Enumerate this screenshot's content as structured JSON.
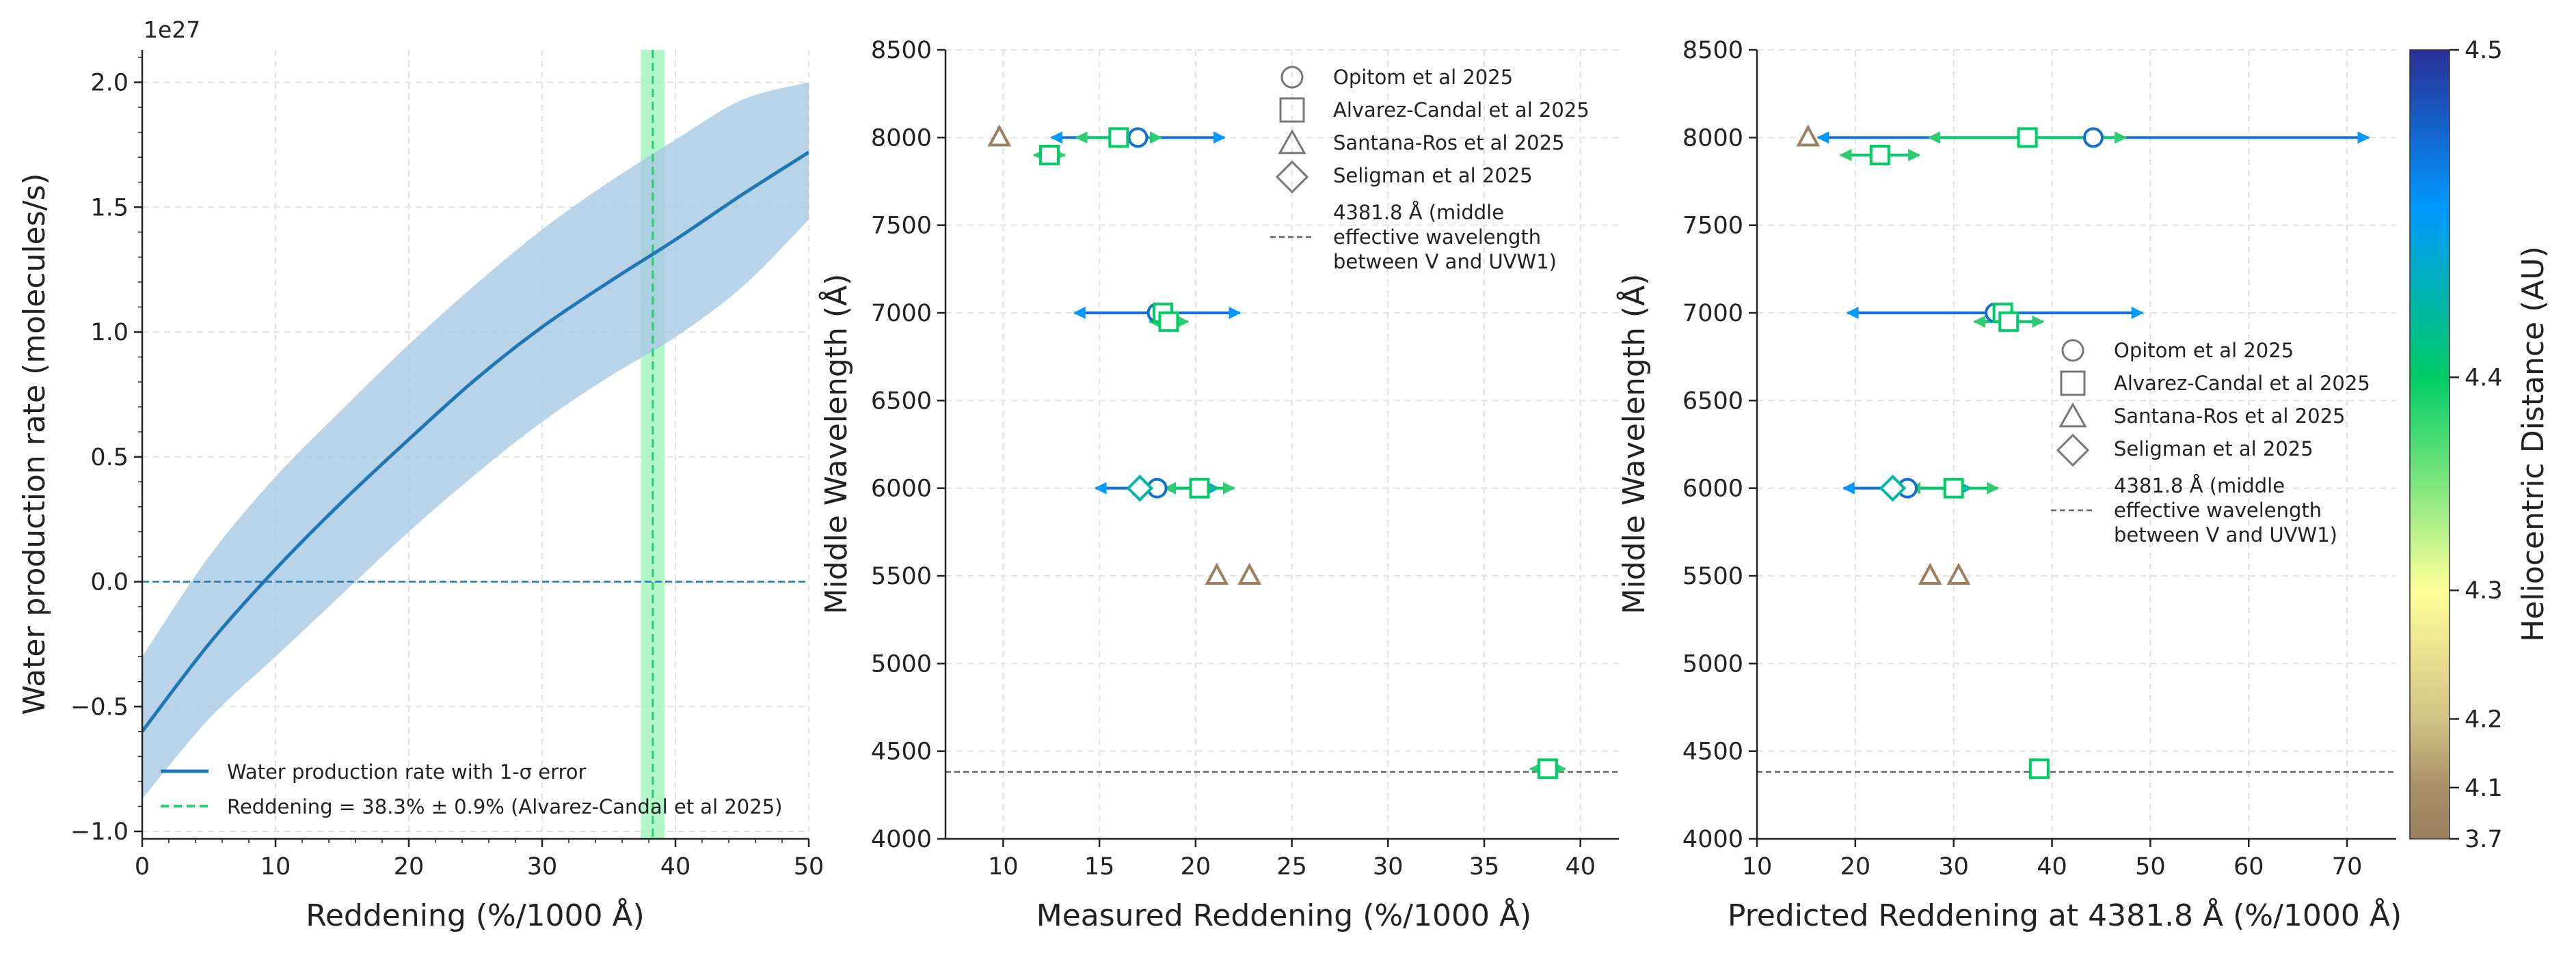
{
  "colors": {
    "curve": "#1f77b4",
    "band": "#a8c8e4",
    "green": "#2ecc71",
    "greenBand": "#a6f5c0",
    "refLine": "#666666",
    "grid": "#e2e2e2",
    "markerGrey": "#777777"
  },
  "cbar": {
    "label": "Heliocentric Distance (AU)",
    "ticks": [
      "4.5",
      "4.4",
      "4.3",
      "4.2",
      "4.1",
      "3.7"
    ],
    "tickValues": [
      4.5,
      4.4,
      4.3,
      4.2,
      4.1,
      3.7
    ],
    "stops": [
      {
        "v": 3.7,
        "c": "#9b8060"
      },
      {
        "v": 4.1,
        "c": "#a98f68"
      },
      {
        "v": 4.2,
        "c": "#d2c386"
      },
      {
        "v": 4.3,
        "c": "#ffff99"
      },
      {
        "v": 4.4,
        "c": "#00cc66"
      },
      {
        "v": 4.45,
        "c": "#0099ff"
      },
      {
        "v": 4.5,
        "c": "#2a2f96"
      }
    ]
  },
  "chart_data": [
    {
      "type": "line",
      "multiplier": "1e27",
      "xlabel": "Reddening (%/1000 Å)",
      "ylabel": "Water production rate (molecules/s)",
      "xlim": [
        0,
        50
      ],
      "ylim": [
        -1.03,
        2.13
      ],
      "xticks": [
        0,
        10,
        20,
        30,
        40,
        50
      ],
      "xtickLabels": [
        "0",
        "10",
        "20",
        "30",
        "40",
        "50"
      ],
      "yticks": [
        -1.0,
        -0.5,
        0.0,
        0.5,
        1.0,
        1.5,
        2.0
      ],
      "ytickLabels": [
        "−1.0",
        "−0.5",
        "0.0",
        "0.5",
        "1.0",
        "1.5",
        "2.0"
      ],
      "x": [
        0,
        5,
        10,
        15,
        20,
        25,
        30,
        35,
        40,
        45,
        50
      ],
      "y": [
        -0.6,
        -0.25,
        0.05,
        0.32,
        0.57,
        0.81,
        1.02,
        1.2,
        1.37,
        1.55,
        1.72
      ],
      "yUpper": [
        -0.3,
        0.1,
        0.42,
        0.69,
        0.95,
        1.19,
        1.41,
        1.6,
        1.77,
        1.93,
        2.0
      ],
      "yLower": [
        -0.87,
        -0.55,
        -0.3,
        -0.05,
        0.2,
        0.43,
        0.64,
        0.82,
        0.98,
        1.18,
        1.45
      ],
      "zeroLine": 0.0,
      "reddeningValue": 38.3,
      "reddeningError": 0.9,
      "legend": [
        "Water production rate with 1-σ error",
        "Reddening = 38.3% ± 0.9% (Alvarez-Candal et al 2025)"
      ]
    },
    {
      "type": "scatter",
      "xlabel": "Measured Reddening (%/1000 Å)",
      "ylabel": "Middle Wavelength (Å)",
      "xlim": [
        7,
        42
      ],
      "ylim": [
        4000,
        8500
      ],
      "xticks": [
        10,
        15,
        20,
        25,
        30,
        35,
        40
      ],
      "xtickLabels": [
        "10",
        "15",
        "20",
        "25",
        "30",
        "35",
        "40"
      ],
      "yticks": [
        4000,
        4500,
        5000,
        5500,
        6000,
        6500,
        7000,
        7500,
        8000,
        8500
      ],
      "ytickLabels": [
        "4000",
        "4500",
        "5000",
        "5500",
        "6000",
        "6500",
        "7000",
        "7500",
        "8000",
        "8500"
      ],
      "refLine": 4381.8,
      "points": [
        {
          "source": "Opitom",
          "x": 17.0,
          "y": 8000,
          "err": 4.5,
          "r": 4.47
        },
        {
          "source": "Alvarez-Candal",
          "x": 16.0,
          "y": 8000,
          "err": 2.2,
          "r": 4.4
        },
        {
          "source": "Santana-Ros",
          "x": 9.8,
          "y": 8000,
          "err": 0,
          "r": 3.7
        },
        {
          "source": "Alvarez-Candal",
          "x": 12.4,
          "y": 7900,
          "err": 0.8,
          "r": 4.4
        },
        {
          "source": "Opitom",
          "x": 18.0,
          "y": 7000,
          "err": 4.3,
          "r": 4.47
        },
        {
          "source": "Alvarez-Candal",
          "x": 18.3,
          "y": 7000,
          "err": 0,
          "r": 4.4
        },
        {
          "source": "Alvarez-Candal",
          "x": 18.6,
          "y": 6950,
          "err": 1.0,
          "r": 4.4
        },
        {
          "source": "Opitom",
          "x": 18.0,
          "y": 6000,
          "err": 3.2,
          "r": 4.47
        },
        {
          "source": "Seligman",
          "x": 17.1,
          "y": 6000,
          "err": 0,
          "r": 4.42
        },
        {
          "source": "Alvarez-Candal",
          "x": 20.2,
          "y": 6000,
          "err": 1.8,
          "r": 4.4
        },
        {
          "source": "Santana-Ros",
          "x": 21.1,
          "y": 5500,
          "err": 0,
          "r": 3.7
        },
        {
          "source": "Santana-Ros",
          "x": 22.8,
          "y": 5500,
          "err": 0,
          "r": 3.7
        },
        {
          "source": "Alvarez-Candal",
          "x": 38.3,
          "y": 4400,
          "err": 0.9,
          "r": 4.4
        }
      ],
      "legend": {
        "circle": "Opitom et al 2025",
        "square": "Alvarez-Candal et al 2025",
        "triangle": "Santana-Ros et al 2025",
        "diamond": "Seligman et al 2025",
        "lineLabel": [
          "4381.8 Å (middle",
          "effective wavelength",
          "between V and UVW1)"
        ]
      }
    },
    {
      "type": "scatter",
      "xlabel": "Predicted Reddening at 4381.8 Å (%/1000 Å)",
      "ylabel": "Middle Wavelength (Å)",
      "xlim": [
        10,
        75
      ],
      "ylim": [
        4000,
        8500
      ],
      "xticks": [
        10,
        20,
        30,
        40,
        50,
        60,
        70
      ],
      "xtickLabels": [
        "10",
        "20",
        "30",
        "40",
        "50",
        "60",
        "70"
      ],
      "yticks": [
        4000,
        4500,
        5000,
        5500,
        6000,
        6500,
        7000,
        7500,
        8000,
        8500
      ],
      "ytickLabels": [
        "4000",
        "4500",
        "5000",
        "5500",
        "6000",
        "6500",
        "7000",
        "7500",
        "8000",
        "8500"
      ],
      "refLine": 4381.8,
      "points": [
        {
          "source": "Opitom",
          "x": 44.2,
          "y": 8000,
          "err": 28,
          "r": 4.47
        },
        {
          "source": "Alvarez-Candal",
          "x": 37.5,
          "y": 8000,
          "err": 10,
          "r": 4.4
        },
        {
          "source": "Santana-Ros",
          "x": 15.2,
          "y": 8000,
          "err": 0,
          "r": 3.7
        },
        {
          "source": "Alvarez-Candal",
          "x": 22.5,
          "y": 7900,
          "err": 4,
          "r": 4.4
        },
        {
          "source": "Opitom",
          "x": 34.2,
          "y": 7000,
          "err": 15,
          "r": 4.47
        },
        {
          "source": "Alvarez-Candal",
          "x": 35.0,
          "y": 7000,
          "err": 0,
          "r": 4.4
        },
        {
          "source": "Alvarez-Candal",
          "x": 35.6,
          "y": 6950,
          "err": 3.5,
          "r": 4.4
        },
        {
          "source": "Opitom",
          "x": 25.3,
          "y": 6000,
          "err": 6.5,
          "r": 4.47
        },
        {
          "source": "Seligman",
          "x": 23.8,
          "y": 6000,
          "err": 0,
          "r": 4.42
        },
        {
          "source": "Alvarez-Candal",
          "x": 30.0,
          "y": 6000,
          "err": 4.5,
          "r": 4.4
        },
        {
          "source": "Santana-Ros",
          "x": 27.6,
          "y": 5500,
          "err": 0,
          "r": 3.7
        },
        {
          "source": "Santana-Ros",
          "x": 30.5,
          "y": 5500,
          "err": 0,
          "r": 3.7
        },
        {
          "source": "Alvarez-Candal",
          "x": 38.7,
          "y": 4400,
          "err": 1,
          "r": 4.4
        }
      ],
      "legend": {
        "circle": "Opitom et al 2025",
        "square": "Alvarez-Candal et al 2025",
        "triangle": "Santana-Ros et al 2025",
        "diamond": "Seligman et al 2025",
        "lineLabel": [
          "4381.8 Å (middle",
          "effective wavelength",
          "between V and UVW1)"
        ]
      }
    }
  ]
}
